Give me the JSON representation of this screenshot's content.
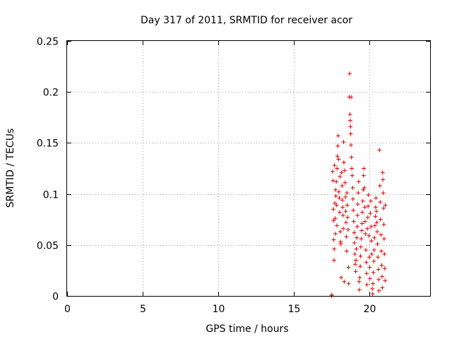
{
  "chart_data": {
    "type": "scatter",
    "title": "Day 317 of 2011, SRMTID for receiver acor",
    "xlabel": "GPS time / hours",
    "ylabel": "SRMTID / TECUs",
    "xlim": [
      0,
      24
    ],
    "ylim": [
      0,
      0.25
    ],
    "xticks": [
      0,
      5,
      10,
      15,
      20
    ],
    "xtick_labels": [
      "0",
      "5",
      "10",
      "15",
      "20"
    ],
    "yticks": [
      0,
      0.05,
      0.1,
      0.15,
      0.2,
      0.25
    ],
    "ytick_labels": [
      "0",
      "0.05",
      "0.1",
      "0.15",
      "0.2",
      "0.25"
    ],
    "grid": true,
    "marker": "+",
    "color": "#e00000",
    "series": [
      {
        "points": [
          [
            17.5,
            0.0
          ],
          [
            17.5,
            0.001
          ],
          [
            17.55,
            0.122
          ],
          [
            17.58,
            0.113
          ],
          [
            17.6,
            0.085
          ],
          [
            17.62,
            0.074
          ],
          [
            17.63,
            0.055
          ],
          [
            17.65,
            0.035
          ],
          [
            17.66,
            0.046
          ],
          [
            17.68,
            0.128
          ],
          [
            17.7,
            0.091
          ],
          [
            17.72,
            0.076
          ],
          [
            17.74,
            0.061
          ],
          [
            17.75,
            0.104
          ],
          [
            17.77,
            0.098
          ],
          [
            17.8,
            0.112
          ],
          [
            17.82,
            0.089
          ],
          [
            17.84,
            0.069
          ],
          [
            17.85,
            0.125
          ],
          [
            17.87,
            0.137
          ],
          [
            17.9,
            0.147
          ],
          [
            17.92,
            0.157
          ],
          [
            17.95,
            0.134
          ],
          [
            17.97,
            0.102
          ],
          [
            18.0,
            0.096
          ],
          [
            18.02,
            0.082
          ],
          [
            18.04,
            0.117
          ],
          [
            18.06,
            0.063
          ],
          [
            18.08,
            0.053
          ],
          [
            18.1,
            0.051
          ],
          [
            18.12,
            0.018
          ],
          [
            18.15,
            0.121
          ],
          [
            18.18,
            0.108
          ],
          [
            18.2,
            0.094
          ],
          [
            18.22,
            0.087
          ],
          [
            18.24,
            0.079
          ],
          [
            18.26,
            0.066
          ],
          [
            18.28,
            0.151
          ],
          [
            18.3,
            0.131
          ],
          [
            18.32,
            0.014
          ],
          [
            18.35,
            0.123
          ],
          [
            18.38,
            0.111
          ],
          [
            18.4,
            0.097
          ],
          [
            18.42,
            0.083
          ],
          [
            18.44,
            0.072
          ],
          [
            18.46,
            0.058
          ],
          [
            18.48,
            0.044
          ],
          [
            18.5,
            0.101
          ],
          [
            18.52,
            0.089
          ],
          [
            18.55,
            0.077
          ],
          [
            18.58,
            0.065
          ],
          [
            18.6,
            0.028
          ],
          [
            18.62,
            0.012
          ],
          [
            18.65,
            0.195
          ],
          [
            18.68,
            0.218
          ],
          [
            18.7,
            0.178
          ],
          [
            18.72,
            0.172
          ],
          [
            18.74,
            0.166
          ],
          [
            18.75,
            0.159
          ],
          [
            18.77,
            0.148
          ],
          [
            18.78,
            0.195
          ],
          [
            18.8,
            0.136
          ],
          [
            18.82,
            0.125
          ],
          [
            18.85,
            0.118
          ],
          [
            18.88,
            0.106
          ],
          [
            18.9,
            0.095
          ],
          [
            18.92,
            0.084
          ],
          [
            18.95,
            0.073
          ],
          [
            18.98,
            0.062
          ],
          [
            19.0,
            0.052
          ],
          [
            19.02,
            0.041
          ],
          [
            19.05,
            0.031
          ],
          [
            19.08,
            0.024
          ],
          [
            19.1,
            0.035
          ],
          [
            19.12,
            0.046
          ],
          [
            19.15,
            0.057
          ],
          [
            19.18,
            0.068
          ],
          [
            19.2,
            0.079
          ],
          [
            19.22,
            0.09
          ],
          [
            19.25,
            0.101
          ],
          [
            19.28,
            0.112
          ],
          [
            19.3,
            0.014
          ],
          [
            19.32,
            0.006
          ],
          [
            19.35,
            0.018
          ],
          [
            19.38,
            0.029
          ],
          [
            19.4,
            0.039
          ],
          [
            19.42,
            0.048
          ],
          [
            19.45,
            0.056
          ],
          [
            19.48,
            0.064
          ],
          [
            19.5,
            0.071
          ],
          [
            19.52,
            0.082
          ],
          [
            19.55,
            0.093
          ],
          [
            19.58,
            0.104
          ],
          [
            19.6,
            0.118
          ],
          [
            19.62,
            0.125
          ],
          [
            19.65,
            0.106
          ],
          [
            19.68,
            0.087
          ],
          [
            19.7,
            0.073
          ],
          [
            19.72,
            0.061
          ],
          [
            19.75,
            0.045
          ],
          [
            19.78,
            0.033
          ],
          [
            19.8,
            0.022
          ],
          [
            19.82,
            0.011
          ],
          [
            19.85,
            0.066
          ],
          [
            19.88,
            0.077
          ],
          [
            19.9,
            0.088
          ],
          [
            19.92,
            0.099
          ],
          [
            19.95,
            0.059
          ],
          [
            19.98,
            0.038
          ],
          [
            20.0,
            0.028
          ],
          [
            20.02,
            0.017
          ],
          [
            20.05,
            0.081
          ],
          [
            20.08,
            0.093
          ],
          [
            20.1,
            0.068
          ],
          [
            20.12,
            0.054
          ],
          [
            20.15,
            0.041
          ],
          [
            20.18,
            0.007
          ],
          [
            20.2,
            0.002
          ],
          [
            20.22,
            0.012
          ],
          [
            20.25,
            0.023
          ],
          [
            20.28,
            0.034
          ],
          [
            20.3,
            0.045
          ],
          [
            20.32,
            0.057
          ],
          [
            20.35,
            0.069
          ],
          [
            20.38,
            0.078
          ],
          [
            20.4,
            0.087
          ],
          [
            20.42,
            0.096
          ],
          [
            20.45,
            0.083
          ],
          [
            20.48,
            0.072
          ],
          [
            20.5,
            0.063
          ],
          [
            20.52,
            0.051
          ],
          [
            20.55,
            0.038
          ],
          [
            20.58,
            0.026
          ],
          [
            20.6,
            0.016
          ],
          [
            20.62,
            0.005
          ],
          [
            20.65,
            0.143
          ],
          [
            20.68,
            0.108
          ],
          [
            20.7,
            0.092
          ],
          [
            20.72,
            0.075
          ],
          [
            20.75,
            0.06
          ],
          [
            20.78,
            0.044
          ],
          [
            20.8,
            0.03
          ],
          [
            20.82,
            0.019
          ],
          [
            20.84,
            0.008
          ],
          [
            20.86,
            0.121
          ],
          [
            20.88,
            0.114
          ],
          [
            20.9,
            0.101
          ],
          [
            20.92,
            0.086
          ],
          [
            20.94,
            0.07
          ],
          [
            20.96,
            0.056
          ],
          [
            20.98,
            0.041
          ],
          [
            21.0,
            0.027
          ],
          [
            21.02,
            0.015
          ],
          [
            21.04,
            0.089
          ]
        ]
      }
    ]
  }
}
